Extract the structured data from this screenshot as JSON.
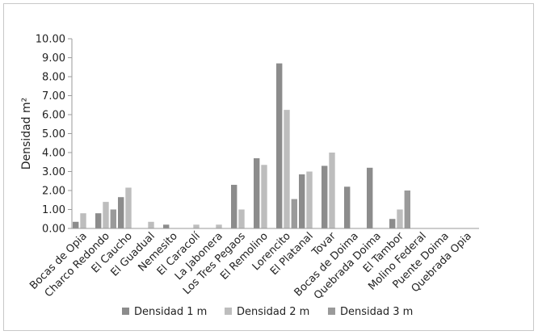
{
  "chart_data": {
    "type": "bar",
    "title": "",
    "xlabel": "",
    "ylabel": "Densidad m²",
    "ylim": [
      0,
      10
    ],
    "yticks": [
      "0.00",
      "1.00",
      "2.00",
      "3.00",
      "4.00",
      "5.00",
      "6.00",
      "7.00",
      "8.00",
      "9.00",
      "10.00"
    ],
    "grid": false,
    "legend_position": "bottom",
    "categories": [
      "Bocas de Opia",
      "Charco Redondo",
      "El Caucho",
      "El Guadual",
      "Nemesito",
      "El Caracolí",
      "La Jabonera",
      "Los Tres Pegaos",
      "El Remolino",
      "Lorencito",
      "El Platanal",
      "Tovar",
      "Bocas de Doima",
      "Quebrada Doima",
      "El Tambor",
      "Molino Federal",
      "Puente Doima",
      "Quebrada Opia"
    ],
    "series": [
      {
        "name": "Densidad 1 m",
        "color": "#8c8c8c",
        "values": [
          0.35,
          0.8,
          1.65,
          0,
          0.2,
          0,
          0,
          2.3,
          3.7,
          8.7,
          2.85,
          3.3,
          2.2,
          3.2,
          0.5,
          0,
          0,
          0
        ]
      },
      {
        "name": "Densidad 2 m",
        "color": "#bdbdbd",
        "values": [
          0.8,
          1.4,
          2.15,
          0.35,
          0,
          0.2,
          0.2,
          1.0,
          3.35,
          6.25,
          3.0,
          4.0,
          0,
          0,
          1.0,
          0,
          0,
          0
        ]
      },
      {
        "name": "Densidad 3 m",
        "color": "#9a9a9a",
        "values": [
          0,
          1.0,
          0,
          0,
          0,
          0,
          0,
          0,
          0,
          1.55,
          0,
          0,
          0,
          0,
          2.0,
          0,
          0,
          0
        ]
      }
    ]
  }
}
